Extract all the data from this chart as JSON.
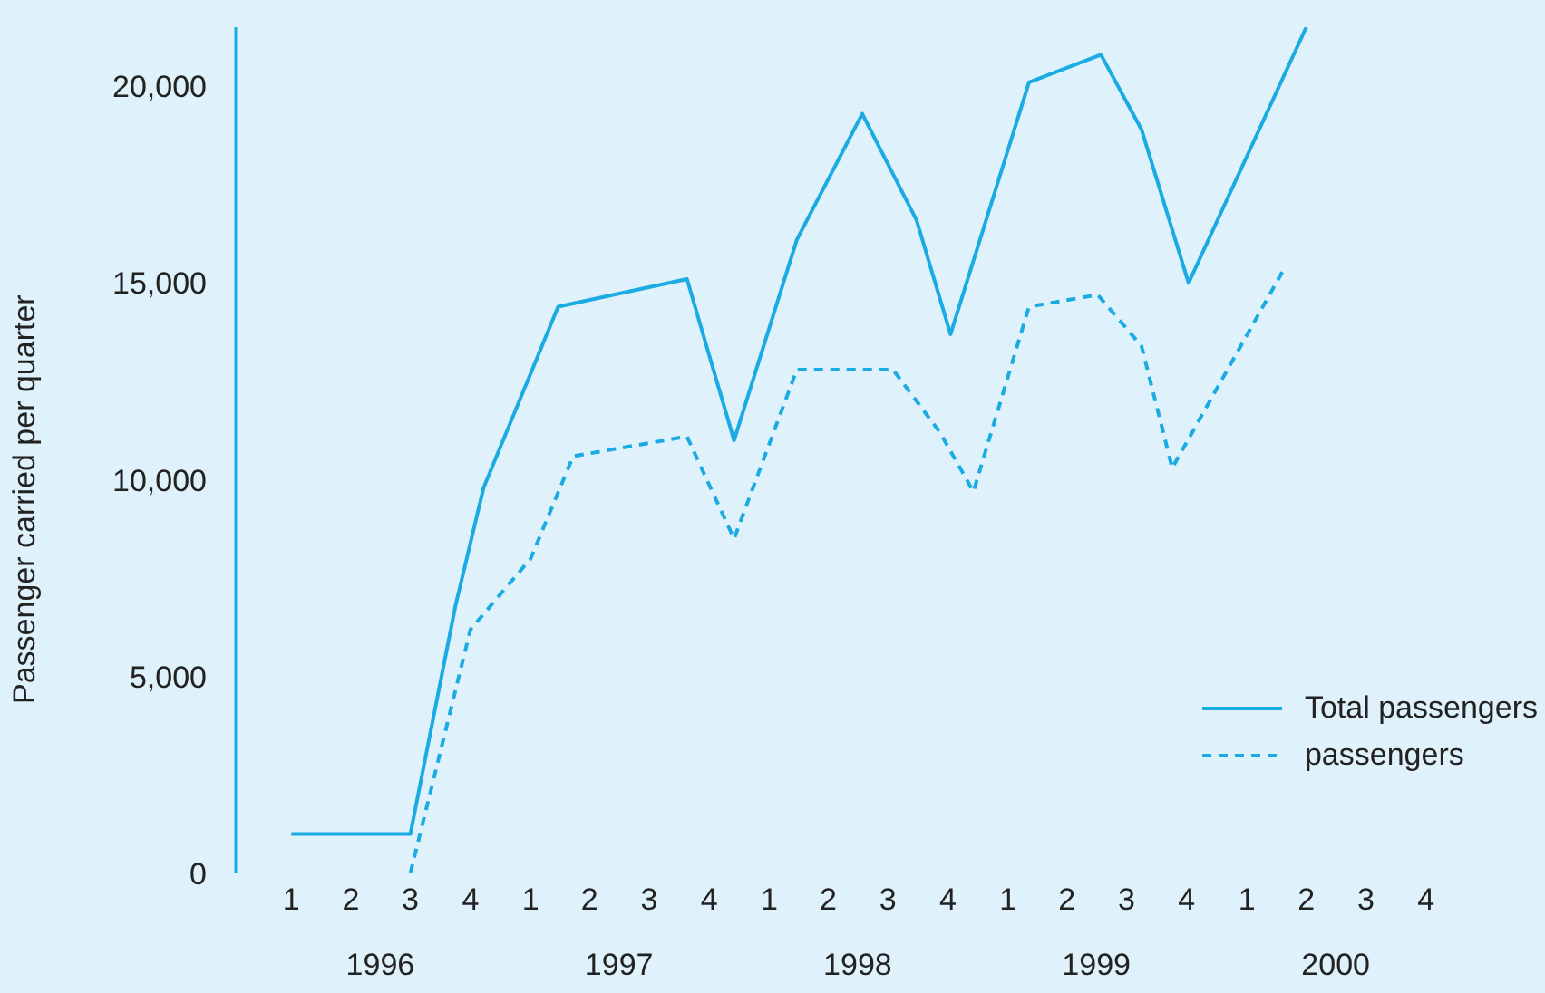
{
  "chart_data": {
    "type": "line",
    "ylabel": "Passenger carried per quarter",
    "xlim": [
      "1995-10-08",
      "2001-04-01"
    ],
    "ylim": [
      0,
      21500
    ],
    "yticks": [
      0,
      {
        "value": 5000,
        "label": "5,000"
      },
      {
        "value": 10000,
        "label": "10,000"
      },
      {
        "value": 15000,
        "label": "15,000"
      },
      {
        "value": 20000,
        "label": "20,000"
      }
    ],
    "xticks": [
      {
        "value": "1996-01-01",
        "label": "1"
      },
      {
        "value": "1996-04-01",
        "label": "2"
      },
      {
        "value": "1996-07-01",
        "label": "3"
      },
      {
        "value": "1996-10-01",
        "label": "4"
      },
      {
        "value": "1997-01-01",
        "label": "1"
      },
      {
        "value": "1997-04-01",
        "label": "2"
      },
      {
        "value": "1997-07-01",
        "label": "3"
      },
      {
        "value": "1997-10-01",
        "label": "4"
      },
      {
        "value": "1998-01-01",
        "label": "1"
      },
      {
        "value": "1998-04-01",
        "label": "2"
      },
      {
        "value": "1998-07-01",
        "label": "3"
      },
      {
        "value": "1998-10-01",
        "label": "4"
      },
      {
        "value": "1999-01-01",
        "label": "1"
      },
      {
        "value": "1999-04-01",
        "label": "2"
      },
      {
        "value": "1999-07-01",
        "label": "3"
      },
      {
        "value": "1999-10-01",
        "label": "4"
      },
      {
        "value": "2000-01-01",
        "label": "1"
      },
      {
        "value": "2000-04-01",
        "label": "2"
      },
      {
        "value": "2000-07-01",
        "label": "3"
      },
      {
        "value": "2000-10-01",
        "label": "4"
      }
    ],
    "x2lim": [
      "1995-10-08",
      "2001-04-01"
    ],
    "x2ticks": [
      {
        "value": "1996-05-16",
        "label": "1996"
      },
      {
        "value": "1997-05-16",
        "label": "1997"
      },
      {
        "value": "1998-05-16",
        "label": "1998"
      },
      {
        "value": "1999-05-16",
        "label": "1999"
      },
      {
        "value": "2000-05-16",
        "label": "2000"
      }
    ],
    "grid": false,
    "legend": "bottom right",
    "marker": "none",
    "series": [
      {
        "name": "Total passengers",
        "color": "#1aabe2",
        "line_style": "solid",
        "x": [
          "1996-01-01",
          "1996-07-01",
          "1996-09-08",
          "1996-10-21",
          "1997-02-12",
          "1997-08-28",
          "1997-11-08",
          "1998-02-12",
          "1998-05-23",
          "1998-08-14",
          "1998-10-05",
          "1999-02-02",
          "1999-05-23",
          "1999-07-24",
          "1999-10-04",
          "2000-04-01"
        ],
        "values": [
          1000,
          1000,
          6800,
          9800,
          14400,
          15100,
          11000,
          16100,
          19300,
          16600,
          13700,
          20100,
          20800,
          18900,
          15000,
          21500
        ]
      },
      {
        "name": "passengers",
        "color": "#1aabe2",
        "line_style": "dashed",
        "x": [
          "1996-07-01",
          "1996-10-01",
          "1997-01-01",
          "1997-03-07",
          "1997-08-28",
          "1997-11-08",
          "1998-02-12",
          "1998-07-09",
          "1998-09-19",
          "1998-11-09",
          "1999-02-02",
          "1999-05-18",
          "1999-07-24",
          "1999-09-09",
          "2000-02-25"
        ],
        "values": [
          0,
          6200,
          8000,
          10600,
          11100,
          8500,
          12800,
          12800,
          11200,
          9700,
          14400,
          14700,
          13400,
          10300,
          15300
        ]
      }
    ]
  }
}
